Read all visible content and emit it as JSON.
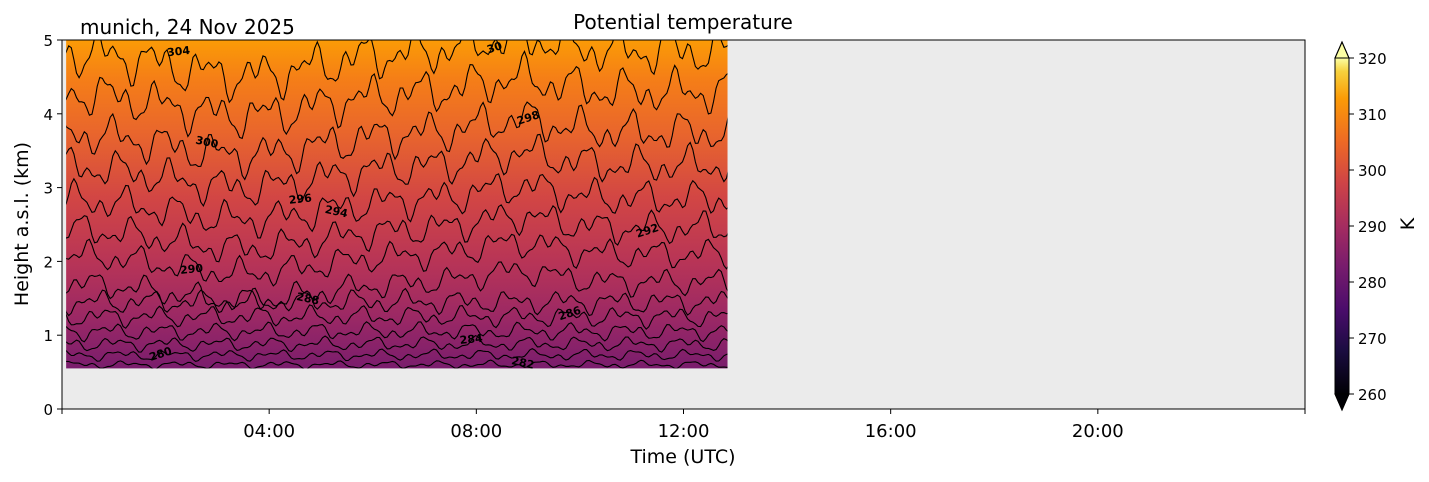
{
  "chart_data": {
    "type": "heatmap",
    "title": "Potential temperature",
    "subtitle": "munich, 24 Nov 2025",
    "xlabel": "Time (UTC)",
    "ylabel": "Height a.s.l. (km)",
    "x_unit": "hours UTC",
    "xlim": [
      0,
      24
    ],
    "ylim": [
      0,
      5
    ],
    "x_ticks": [
      4,
      8,
      12,
      16,
      20
    ],
    "x_tick_labels": [
      "04:00",
      "08:00",
      "12:00",
      "16:00",
      "20:00"
    ],
    "y_ticks": [
      0,
      1,
      2,
      3,
      4,
      5
    ],
    "y_tick_labels": [
      "0",
      "1",
      "2",
      "3",
      "4",
      "5"
    ],
    "data_extent": {
      "time_start": 0.08,
      "time_end": 12.85,
      "height_min": 0.55,
      "height_max": 5.0
    },
    "colorbar": {
      "label": "K",
      "min": 260,
      "max": 320,
      "ticks": [
        260,
        270,
        280,
        290,
        300,
        310,
        320
      ],
      "colormap": "inferno",
      "extend": "both"
    },
    "contour_levels": [
      278,
      280,
      282,
      284,
      286,
      288,
      290,
      292,
      294,
      296,
      298,
      300,
      302,
      304
    ],
    "contour_labels": [
      {
        "text": "280",
        "time": 1.9,
        "height": 0.75
      },
      {
        "text": "282",
        "time": 8.9,
        "height": 0.63
      },
      {
        "text": "284",
        "time": 7.9,
        "height": 0.95
      },
      {
        "text": "286",
        "time": 9.8,
        "height": 1.3
      },
      {
        "text": "288",
        "time": 4.75,
        "height": 1.5
      },
      {
        "text": "290",
        "time": 2.5,
        "height": 1.9
      },
      {
        "text": "292",
        "time": 11.3,
        "height": 2.42
      },
      {
        "text": "294",
        "time": 5.3,
        "height": 2.68
      },
      {
        "text": "296",
        "time": 4.6,
        "height": 2.85
      },
      {
        "text": "298",
        "time": 9.0,
        "height": 3.95
      },
      {
        "text": "300",
        "time": 2.8,
        "height": 3.62
      },
      {
        "text": "304",
        "time": 2.25,
        "height": 4.85
      },
      {
        "text": "30",
        "time": 8.35,
        "height": 4.9
      }
    ],
    "background": "#ebebeb"
  }
}
